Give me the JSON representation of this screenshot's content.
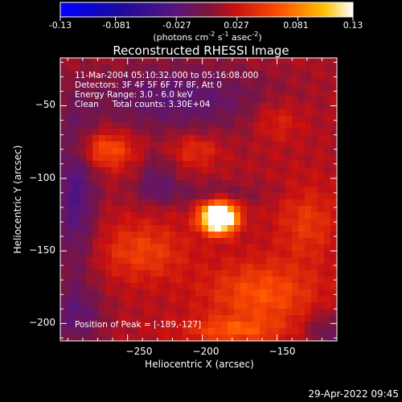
{
  "colorbar": {
    "ticks": [
      "-0.13",
      "-0.081",
      "-0.027",
      "0.027",
      "0.081",
      "0.13"
    ],
    "tick_values": [
      -0.13,
      -0.081,
      -0.027,
      0.027,
      0.081,
      0.13
    ],
    "range": [
      -0.13,
      0.13
    ],
    "unit_parts": [
      "(photons cm",
      "-2",
      " s",
      "-1",
      " asec",
      "-2",
      ")"
    ]
  },
  "chart_data": {
    "type": "heatmap",
    "title": "Reconstructed RHESSI Image",
    "xlabel": "Heliocentric X (arcsec)",
    "ylabel": "Heliocentric Y (arcsec)",
    "xlim": [
      -295,
      -110
    ],
    "ylim": [
      -212,
      -17
    ],
    "xticks": [
      -250,
      -200,
      -150
    ],
    "yticks": [
      -50,
      -100,
      -150,
      -200
    ],
    "x_tick_labels": [
      "−250",
      "−200",
      "−150"
    ],
    "y_tick_labels": [
      "−50",
      "−100",
      "−150",
      "−200"
    ],
    "peak": {
      "x": -189,
      "y": -127,
      "value": 0.13
    },
    "sources": [
      {
        "x": -189,
        "y": -127,
        "sx": 8,
        "sy": 7,
        "amp": 0.2
      },
      {
        "x": -265,
        "y": -80,
        "sx": 14,
        "sy": 9,
        "amp": 0.05
      },
      {
        "x": -240,
        "y": -150,
        "sx": 20,
        "sy": 14,
        "amp": 0.035
      },
      {
        "x": -160,
        "y": -180,
        "sx": 26,
        "sy": 16,
        "amp": 0.045
      },
      {
        "x": -130,
        "y": -130,
        "sx": 14,
        "sy": 18,
        "amp": 0.03
      },
      {
        "x": -205,
        "y": -80,
        "sx": 12,
        "sy": 8,
        "amp": 0.03
      },
      {
        "x": -180,
        "y": -205,
        "sx": 22,
        "sy": 6,
        "amp": 0.04
      },
      {
        "x": -150,
        "y": -60,
        "sx": 12,
        "sy": 10,
        "amp": 0.025
      }
    ],
    "negative_sources": [
      {
        "x": -215,
        "y": -45,
        "sx": 45,
        "sy": 18,
        "amp": 0.04
      },
      {
        "x": -285,
        "y": -110,
        "sx": 10,
        "sy": 40,
        "amp": 0.05
      },
      {
        "x": -230,
        "y": -100,
        "sx": 10,
        "sy": 12,
        "amp": 0.03
      },
      {
        "x": -200,
        "y": -110,
        "sx": 35,
        "sy": 6,
        "amp": 0.02
      },
      {
        "x": -285,
        "y": -195,
        "sx": 14,
        "sy": 16,
        "amp": 0.035
      },
      {
        "x": -118,
        "y": -205,
        "sx": 10,
        "sy": 10,
        "amp": 0.03
      }
    ],
    "annotations": [
      "11-Mar-2004 05:10:32.000 to 05:16:08.000",
      "Detectors: 3F 4F 5F 6F 7F 8F, Att 0",
      "Energy Range: 3.0 - 6.0 keV",
      "Clean     Total counts: 3.30E+04"
    ],
    "peak_label": "Position of Peak = [-189,-127]"
  },
  "footer": {
    "timestamp": "29-Apr-2022 09:45"
  }
}
